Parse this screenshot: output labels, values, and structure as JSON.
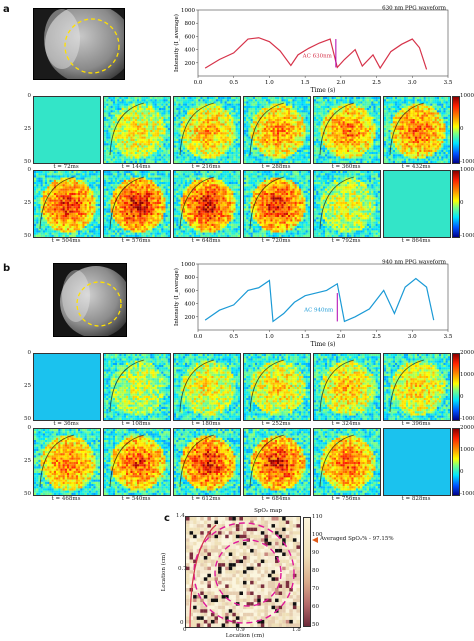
{
  "panels": {
    "a": {
      "letter": "a",
      "waveform_title": "630 nm PPG waveform",
      "ylabel": "Intensity (Iₐᵤₑᵣₐᵍₑ)",
      "ylabel_display": "Intensity (I_average)",
      "xlabel": "Time (s)",
      "ac_label": "AC₀₆₃₀ₙₘ",
      "ac_display": "AC 630nm",
      "row1_times": [
        "t = 72ms",
        "t = 144ms",
        "t = 216ms",
        "t = 288ms",
        "t = 360ms",
        "t = 432ms"
      ],
      "row2_times": [
        "t = 504ms",
        "t = 576ms",
        "t = 648ms",
        "t = 720ms",
        "t = 792ms",
        "t = 864ms"
      ],
      "colorbar_ticks": [
        "1000",
        "0",
        "-1000"
      ],
      "map_yticks": [
        "0",
        "25",
        "50"
      ],
      "row_intensity": [
        [
          0,
          0.45,
          0.6,
          0.7,
          0.75,
          0.8
        ],
        [
          0.9,
          1.0,
          1.0,
          0.95,
          0.35,
          0
        ]
      ]
    },
    "b": {
      "letter": "b",
      "waveform_title": "940 nm PPG waveform",
      "ylabel_display": "Intensity (I_average)",
      "xlabel": "Time (s)",
      "ac_display": "AC 940nm",
      "row1_times": [
        "t = 36ms",
        "t = 108ms",
        "t = 180ms",
        "t = 252ms",
        "t = 324ms",
        "t = 396ms"
      ],
      "row2_times": [
        "t = 468ms",
        "t = 540ms",
        "t = 612ms",
        "t = 684ms",
        "t = 756ms",
        "t = 828ms"
      ],
      "colorbar_ticks_row1": [
        "2000",
        "1000",
        "0",
        "-1000"
      ],
      "colorbar_ticks_row2": [
        "2000",
        "1000",
        "0",
        "-1000"
      ],
      "map_yticks": [
        "0",
        "25",
        "50"
      ],
      "row_intensity": [
        [
          0,
          0.3,
          0.45,
          0.5,
          0.55,
          0.5
        ],
        [
          0.75,
          0.85,
          0.95,
          0.95,
          0.8,
          0
        ]
      ]
    },
    "c": {
      "letter": "c",
      "title": "SpO₂ map",
      "ylabel": "Location (cm)",
      "xlabel": "Location (cm)",
      "xticks": [
        "0",
        "0.9",
        "1.8"
      ],
      "yticks": [
        "1.4",
        "0.7",
        "0"
      ],
      "annotation": "Averaged SpO₂% - 97.15%",
      "colorbar_ticks": [
        "110",
        "100",
        "90",
        "80",
        "70",
        "60",
        "50"
      ]
    }
  },
  "chart_data": [
    {
      "type": "line",
      "title": "630 nm PPG waveform",
      "xlabel": "Time (s)",
      "ylabel": "Intensity (I_average)",
      "xlim": [
        0,
        3.5
      ],
      "ylim": [
        0,
        1000
      ],
      "xticks": [
        0,
        0.5,
        1.0,
        1.5,
        2.0,
        2.5,
        3.0,
        3.5
      ],
      "yticks": [
        200,
        400,
        600,
        800,
        1000
      ],
      "series": [
        {
          "color": "#d6334a",
          "x": [
            0.1,
            0.3,
            0.5,
            0.7,
            0.85,
            1.0,
            1.15,
            1.3,
            1.4,
            1.55,
            1.7,
            1.85,
            1.95,
            2.05,
            2.2,
            2.3,
            2.45,
            2.55,
            2.7,
            2.85,
            3.0,
            3.1,
            3.2
          ],
          "y": [
            120,
            250,
            350,
            560,
            580,
            520,
            380,
            160,
            320,
            420,
            500,
            560,
            130,
            250,
            400,
            150,
            320,
            120,
            370,
            480,
            560,
            430,
            100
          ]
        }
      ]
    },
    {
      "type": "line",
      "title": "940 nm PPG waveform",
      "xlabel": "Time (s)",
      "ylabel": "Intensity (I_average)",
      "xlim": [
        0,
        3.5
      ],
      "ylim": [
        0,
        1000
      ],
      "xticks": [
        0,
        0.5,
        1.0,
        1.5,
        2.0,
        2.5,
        3.0,
        3.5
      ],
      "yticks": [
        200,
        400,
        600,
        800,
        1000
      ],
      "series": [
        {
          "color": "#1b9ad6",
          "x": [
            0.1,
            0.3,
            0.5,
            0.7,
            0.85,
            1.0,
            1.05,
            1.2,
            1.35,
            1.5,
            1.65,
            1.8,
            1.95,
            2.05,
            2.2,
            2.4,
            2.6,
            2.75,
            2.9,
            3.05,
            3.2,
            3.3
          ],
          "y": [
            150,
            300,
            380,
            600,
            640,
            750,
            130,
            250,
            420,
            520,
            560,
            600,
            700,
            130,
            200,
            320,
            600,
            250,
            650,
            780,
            650,
            150
          ]
        }
      ]
    }
  ]
}
